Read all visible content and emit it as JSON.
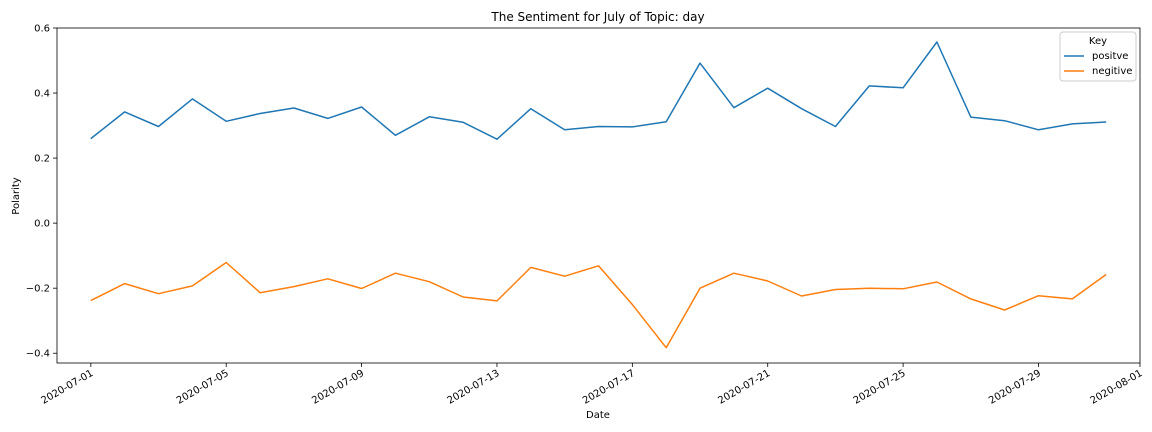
{
  "chart_data": {
    "type": "line",
    "title": "The Sentiment for July of Topic: day",
    "xlabel": "Date",
    "ylabel": "Polarity",
    "x": [
      "2020-07-01",
      "2020-07-02",
      "2020-07-03",
      "2020-07-04",
      "2020-07-05",
      "2020-07-06",
      "2020-07-07",
      "2020-07-08",
      "2020-07-09",
      "2020-07-10",
      "2020-07-11",
      "2020-07-12",
      "2020-07-13",
      "2020-07-14",
      "2020-07-15",
      "2020-07-16",
      "2020-07-17",
      "2020-07-18",
      "2020-07-19",
      "2020-07-20",
      "2020-07-21",
      "2020-07-22",
      "2020-07-23",
      "2020-07-24",
      "2020-07-25",
      "2020-07-26",
      "2020-07-27",
      "2020-07-28",
      "2020-07-29",
      "2020-07-30",
      "2020-07-31"
    ],
    "series": [
      {
        "name": "positve",
        "color": "#1f77b4",
        "values": [
          0.26,
          0.342,
          0.297,
          0.382,
          0.313,
          0.337,
          0.354,
          0.322,
          0.357,
          0.27,
          0.327,
          0.31,
          0.258,
          0.352,
          0.287,
          0.297,
          0.296,
          0.312,
          0.492,
          0.355,
          0.415,
          0.352,
          0.297,
          0.422,
          0.416,
          0.557,
          0.326,
          0.315,
          0.287,
          0.305,
          0.311
        ]
      },
      {
        "name": "negitive",
        "color": "#ff7f0e",
        "values": [
          -0.238,
          -0.186,
          -0.217,
          -0.193,
          -0.121,
          -0.214,
          -0.195,
          -0.171,
          -0.201,
          -0.154,
          -0.18,
          -0.227,
          -0.239,
          -0.136,
          -0.163,
          -0.131,
          -0.25,
          -0.383,
          -0.2,
          -0.154,
          -0.178,
          -0.224,
          -0.204,
          -0.2,
          -0.202,
          -0.181,
          -0.233,
          -0.267,
          -0.223,
          -0.233,
          -0.158
        ]
      }
    ],
    "xlim": [
      "2020-06-30",
      "2020-08-01"
    ],
    "ylim": [
      -0.43,
      0.6
    ],
    "yticks": [
      -0.4,
      -0.2,
      0.0,
      0.2,
      0.4,
      0.6
    ],
    "ytick_labels": [
      "−0.4",
      "−0.2",
      "0.0",
      "0.2",
      "0.4",
      "0.6"
    ],
    "xticks": [
      "2020-07-01",
      "2020-07-05",
      "2020-07-09",
      "2020-07-13",
      "2020-07-17",
      "2020-07-21",
      "2020-07-25",
      "2020-07-29",
      "2020-08-01"
    ],
    "grid": false,
    "legend": {
      "title": "Key",
      "placement": "top-right"
    }
  }
}
